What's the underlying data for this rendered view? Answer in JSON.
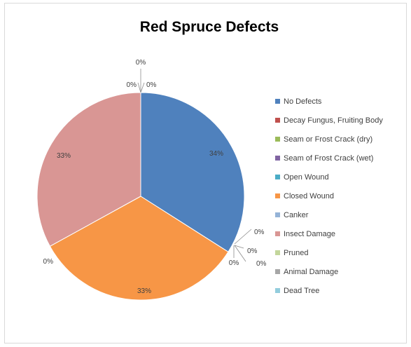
{
  "chart_data": {
    "type": "pie",
    "title": "Red Spruce Defects",
    "categories": [
      "No Defects",
      "Decay Fungus, Fruiting Body",
      "Seam or Frost Crack (dry)",
      "Seam of Frost Crack (wet)",
      "Open Wound",
      "Closed Wound",
      "Canker",
      "Insect Damage",
      "Pruned",
      "Animal Damage",
      "Dead Tree"
    ],
    "values": [
      34,
      0,
      0,
      0,
      0,
      33,
      0,
      33,
      0,
      0,
      0
    ],
    "data_labels": [
      "34%",
      "0%",
      "0%",
      "0%",
      "0%",
      "33%",
      "0%",
      "33%",
      "0%",
      "0%",
      "0%"
    ],
    "colors": [
      "#4f81bd",
      "#c0504d",
      "#9bbb59",
      "#8064a2",
      "#4bacc6",
      "#f79646",
      "#95b3d7",
      "#d99694",
      "#c3d69b",
      "#a6a6a6",
      "#93cddd"
    ],
    "legend_position": "right"
  }
}
